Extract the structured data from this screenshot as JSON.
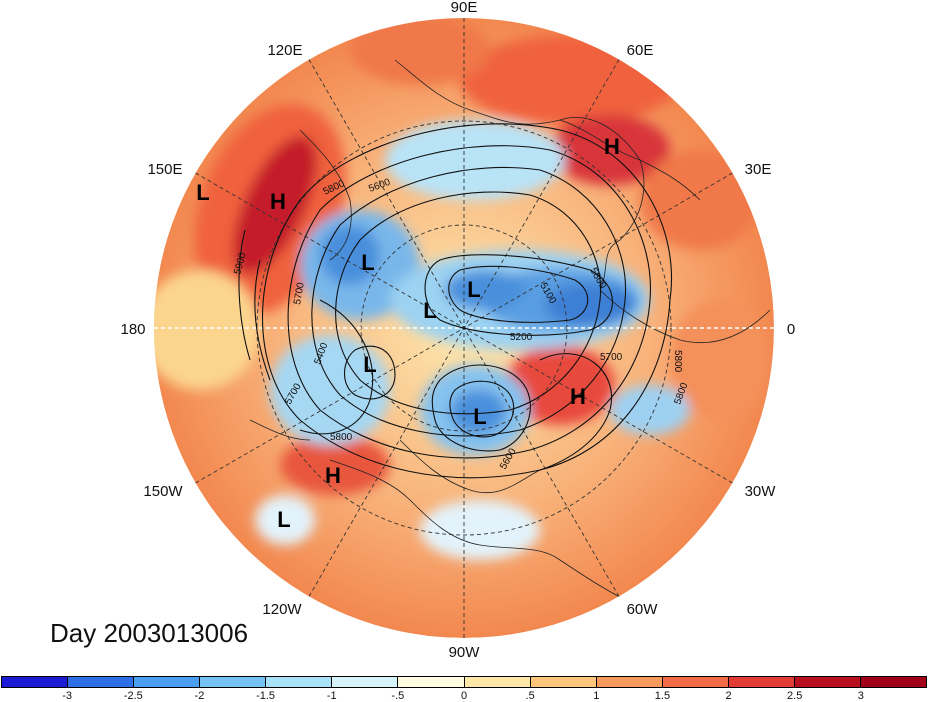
{
  "map": {
    "longitude_labels": {
      "top": "90E",
      "top_left": "120E",
      "top_right": "60E",
      "upper_left": "150E",
      "upper_right": "30E",
      "left": "180",
      "right": "0",
      "lower_left": "150W",
      "lower_right": "30W",
      "bottom_left": "120W",
      "bottom_right": "60W",
      "bottom": "90W"
    },
    "contour_labels": [
      "5800",
      "5600",
      "5900",
      "5700",
      "5400",
      "5700",
      "5800",
      "5100",
      "5200",
      "5700",
      "5800",
      "5800",
      "5600",
      "5800"
    ],
    "pressure_centers": [
      "H",
      "L",
      "H",
      "L",
      "L",
      "L",
      "L",
      "L",
      "H",
      "H",
      "L"
    ],
    "colors": {
      "strong_warm": "#c41e2a",
      "warm": "#f46d43",
      "light_warm": "#fdae61",
      "pale_warm": "#fee8a8",
      "pale_cool": "#d8f0fb",
      "cool": "#74b9e8",
      "strong_cool": "#2166ac"
    }
  },
  "title": "Day 2003013006",
  "colorbar": {
    "colors": [
      "#1b1bd6",
      "#2e6ee6",
      "#4a9ff0",
      "#74c3f4",
      "#a8e2f8",
      "#d8f4fb",
      "#fffbe0",
      "#fee8a8",
      "#fdc67a",
      "#f79a5c",
      "#f26a48",
      "#e23c35",
      "#b8101f",
      "#a00018"
    ],
    "labels": [
      "-3",
      "-2.5",
      "-2",
      "-1.5",
      "-1",
      "-.5",
      "0",
      ".5",
      "1",
      "1.5",
      "2",
      "2.5",
      "3"
    ]
  }
}
